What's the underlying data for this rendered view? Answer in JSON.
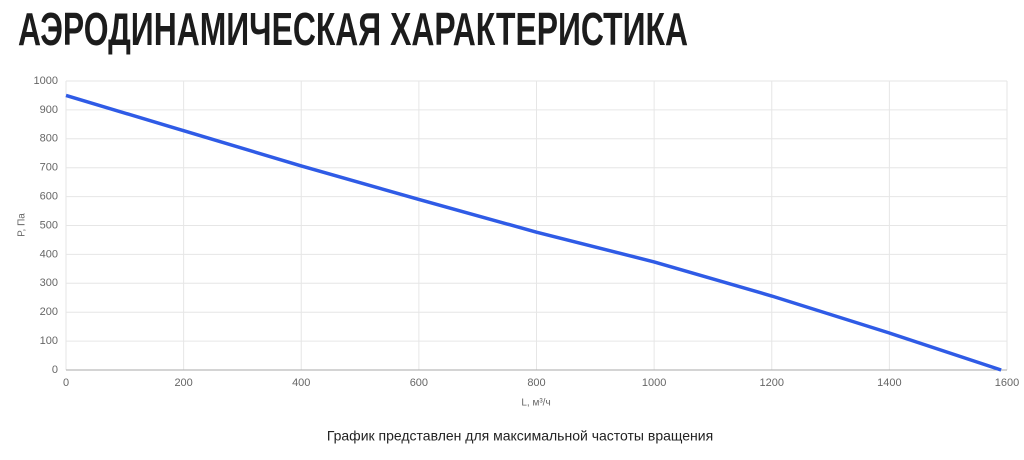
{
  "chart_data": {
    "type": "line",
    "title": "АЭРОДИНАМИЧЕСКАЯ ХАРАКТЕРИСТИКА",
    "x_label": "L, м³/ч",
    "y_label": "P, Па",
    "note": "График представлен для максимальной частоты вращения",
    "x": [
      0,
      200,
      400,
      600,
      800,
      1000,
      1200,
      1400,
      1590
    ],
    "series": [
      {
        "name": "P",
        "color": "#2f5be6",
        "values": [
          950,
          828,
          706,
          590,
          477,
          374,
          256,
          128,
          0
        ]
      }
    ],
    "xlim": [
      0,
      1600
    ],
    "xticks": [
      0,
      200,
      400,
      600,
      800,
      1000,
      1200,
      1400,
      1600
    ],
    "ylim": [
      0,
      1000
    ],
    "yticks": [
      0,
      100,
      200,
      300,
      400,
      500,
      600,
      700,
      800,
      900,
      1000
    ],
    "grid": true
  }
}
